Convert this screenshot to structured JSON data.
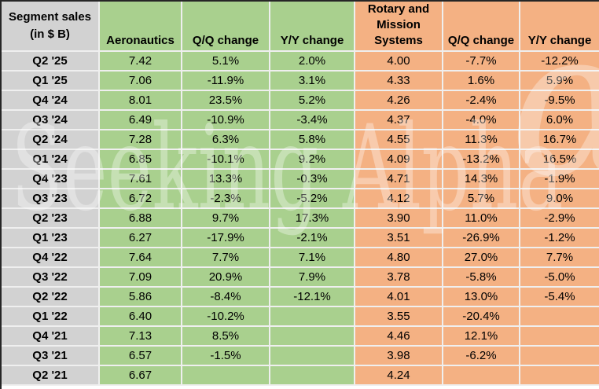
{
  "chart_data": {
    "type": "table",
    "title": "Segment sales (in $ B)",
    "corner": {
      "line1": "Segment sales",
      "line2": "(in $ B)"
    },
    "columns": [
      "Aeronautics",
      "Q/Q change",
      "Y/Y change",
      "Rotary and Mission Systems",
      "Q/Q change",
      "Y/Y change"
    ],
    "column_groups": [
      "green",
      "green",
      "green",
      "orange",
      "orange",
      "orange"
    ],
    "rows": [
      {
        "label": "Q2 '25",
        "values": [
          "7.42",
          "5.1%",
          "2.0%",
          "4.00",
          "-7.7%",
          "-12.2%"
        ]
      },
      {
        "label": "Q1 '25",
        "values": [
          "7.06",
          "-11.9%",
          "3.1%",
          "4.33",
          "1.6%",
          "5.9%"
        ]
      },
      {
        "label": "Q4 '24",
        "values": [
          "8.01",
          "23.5%",
          "5.2%",
          "4.26",
          "-2.4%",
          "-9.5%"
        ]
      },
      {
        "label": "Q3 '24",
        "values": [
          "6.49",
          "-10.9%",
          "-3.4%",
          "4.37",
          "-4.0%",
          "6.0%"
        ]
      },
      {
        "label": "Q2 '24",
        "values": [
          "7.28",
          "6.3%",
          "5.8%",
          "4.55",
          "11.3%",
          "16.7%"
        ]
      },
      {
        "label": "Q1 '24",
        "values": [
          "6.85",
          "-10.1%",
          "9.2%",
          "4.09",
          "-13.2%",
          "16.5%"
        ]
      },
      {
        "label": "Q4 '23",
        "values": [
          "7.61",
          "13.3%",
          "-0.3%",
          "4.71",
          "14.3%",
          "-1.9%"
        ]
      },
      {
        "label": "Q3 '23",
        "values": [
          "6.72",
          "-2.3%",
          "-5.2%",
          "4.12",
          "5.7%",
          "9.0%"
        ]
      },
      {
        "label": "Q2 '23",
        "values": [
          "6.88",
          "9.7%",
          "17.3%",
          "3.90",
          "11.0%",
          "-2.9%"
        ]
      },
      {
        "label": "Q1 '23",
        "values": [
          "6.27",
          "-17.9%",
          "-2.1%",
          "3.51",
          "-26.9%",
          "-1.2%"
        ]
      },
      {
        "label": "Q4 '22",
        "values": [
          "7.64",
          "7.7%",
          "7.1%",
          "4.80",
          "27.0%",
          "7.7%"
        ]
      },
      {
        "label": "Q3 '22",
        "values": [
          "7.09",
          "20.9%",
          "7.9%",
          "3.78",
          "-5.8%",
          "-5.0%"
        ]
      },
      {
        "label": "Q2 '22",
        "values": [
          "5.86",
          "-8.4%",
          "-12.1%",
          "4.01",
          "13.0%",
          "-5.4%"
        ]
      },
      {
        "label": "Q1 '22",
        "values": [
          "6.40",
          "-10.2%",
          "",
          "3.55",
          "-20.4%",
          ""
        ]
      },
      {
        "label": "Q4 '21",
        "values": [
          "7.13",
          "8.5%",
          "",
          "4.46",
          "12.1%",
          ""
        ]
      },
      {
        "label": "Q3 '21",
        "values": [
          "6.57",
          "-1.5%",
          "",
          "3.98",
          "-6.2%",
          ""
        ]
      },
      {
        "label": "Q2 '21",
        "values": [
          "6.67",
          "",
          "",
          "4.24",
          "",
          ""
        ]
      }
    ],
    "layout_hints": {
      "grid": "on",
      "legend": "none"
    }
  },
  "watermark": {
    "text": "Seeking Alpha",
    "alpha_glyph": "α"
  },
  "colors": {
    "green_cells": "#a9d08e",
    "orange_cells": "#f4b183",
    "gray_cells": "#d2d2d2",
    "gridline": "#efefef",
    "outer_border": "#262626",
    "watermark": "#ffffff",
    "text": "#000000"
  }
}
